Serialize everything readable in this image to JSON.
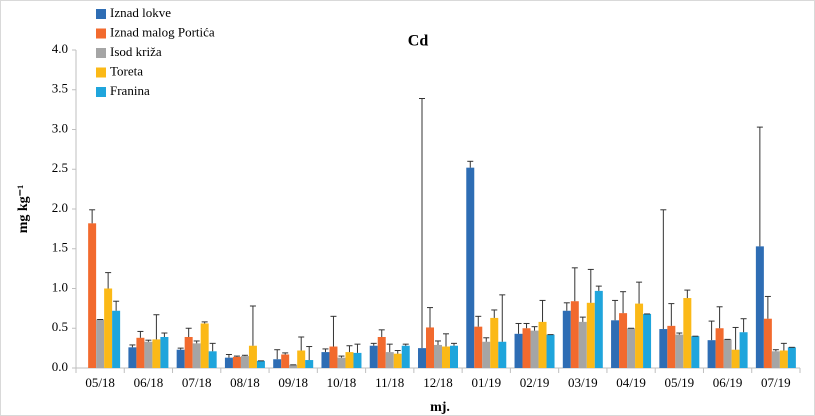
{
  "chart_data": {
    "type": "bar",
    "title": "Cd",
    "x_label": "mj.",
    "y_label": "mg kg⁻¹",
    "categories": [
      "05/18",
      "06/18",
      "07/18",
      "08/18",
      "09/18",
      "10/18",
      "11/18",
      "12/18",
      "01/19",
      "02/19",
      "03/19",
      "04/19",
      "05/19",
      "06/19",
      "07/19"
    ],
    "series": [
      {
        "name": "Iznad lokve",
        "color": "#2e6db4",
        "values": [
          null,
          0.26,
          0.23,
          0.13,
          0.11,
          0.2,
          0.28,
          0.25,
          2.52,
          0.43,
          0.72,
          0.6,
          0.49,
          0.35,
          1.53
        ],
        "errors": [
          null,
          0.03,
          0.02,
          0.04,
          0.12,
          0.04,
          0.03,
          3.14,
          0.08,
          0.13,
          0.1,
          0.25,
          1.5,
          0.24,
          1.5
        ]
      },
      {
        "name": "Iznad malog Portića",
        "color": "#f26a2e",
        "values": [
          1.82,
          0.38,
          0.39,
          0.14,
          0.17,
          0.27,
          0.39,
          0.51,
          0.52,
          0.5,
          0.84,
          0.69,
          0.53,
          0.5,
          0.62
        ],
        "errors": [
          0.17,
          0.08,
          0.11,
          0.01,
          0.02,
          0.38,
          0.09,
          0.25,
          0.13,
          0.06,
          0.42,
          0.27,
          0.28,
          0.27,
          0.28
        ]
      },
      {
        "name": "Isod križa",
        "color": "#a5a5a5",
        "values": [
          0.61,
          0.33,
          0.31,
          0.15,
          0.04,
          0.13,
          0.2,
          0.29,
          0.33,
          0.47,
          0.58,
          0.5,
          0.42,
          0.36,
          0.21
        ],
        "errors": [
          0,
          0.02,
          0.03,
          0.01,
          0,
          0.02,
          0.1,
          0.05,
          0.05,
          0.05,
          0.06,
          0,
          0.02,
          0,
          0.02
        ]
      },
      {
        "name": "Toreta",
        "color": "#fbb917",
        "values": [
          1.0,
          0.36,
          0.56,
          0.28,
          0.22,
          0.2,
          0.18,
          0.27,
          0.63,
          0.58,
          0.82,
          0.81,
          0.88,
          0.23,
          0.22
        ],
        "errors": [
          0.2,
          0.31,
          0.02,
          0.5,
          0.17,
          0.08,
          0.04,
          0.16,
          0.1,
          0.27,
          0.42,
          0.27,
          0.1,
          0.28,
          0.09
        ]
      },
      {
        "name": "Franina",
        "color": "#1fa5dc",
        "values": [
          0.72,
          0.39,
          0.21,
          0.09,
          0.1,
          0.19,
          0.28,
          0.28,
          0.33,
          0.42,
          0.97,
          0.68,
          0.4,
          0.45,
          0.26
        ],
        "errors": [
          0.12,
          0.05,
          0.1,
          0,
          0.17,
          0.11,
          0.02,
          0.03,
          0.59,
          0,
          0.06,
          0,
          0,
          0.17,
          0
        ]
      }
    ],
    "ylim": [
      0,
      4.0
    ],
    "yticks": [
      {
        "value": 0,
        "label": "0.0"
      },
      0.5,
      {
        "value": 1,
        "label": "1.0"
      },
      1.5,
      {
        "value": 2,
        "label": "2.0"
      },
      2.5,
      {
        "value": 3,
        "label": "3.0"
      },
      3.5,
      {
        "value": 4,
        "label": "4.0"
      }
    ],
    "legend": "upper left",
    "grid": false
  }
}
